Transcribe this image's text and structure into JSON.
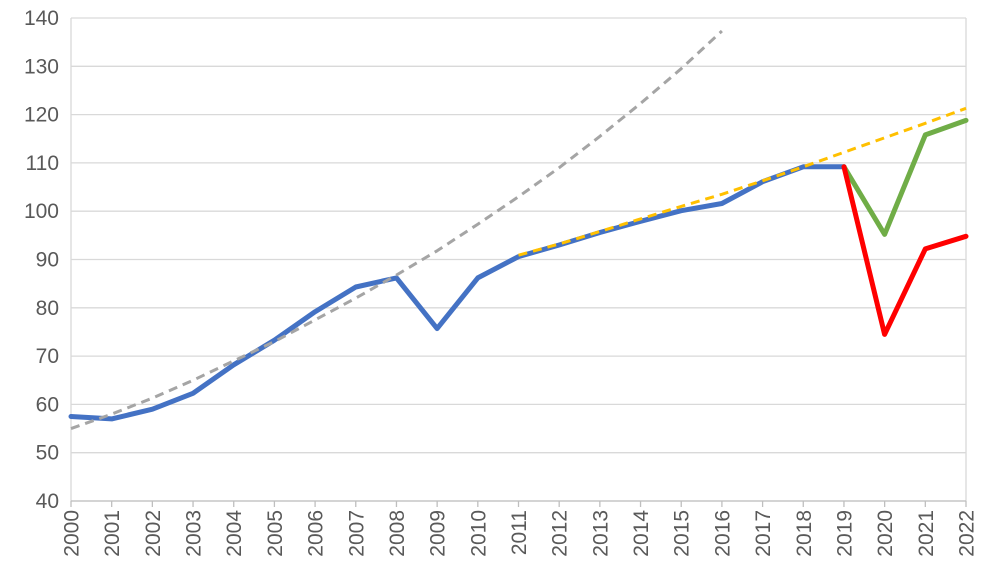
{
  "chart_data": {
    "type": "line",
    "title": "",
    "xlabel": "",
    "ylabel": "",
    "ylim": [
      40,
      140
    ],
    "y_ticks": [
      40,
      50,
      60,
      70,
      80,
      90,
      100,
      110,
      120,
      130,
      140
    ],
    "x_ticks": [
      "2000",
      "2001",
      "2002",
      "2003",
      "2004",
      "2005",
      "2006",
      "2007",
      "2008",
      "2009",
      "2010",
      "2011",
      "2012",
      "2013",
      "2014",
      "2015",
      "2016",
      "2017",
      "2018",
      "2019",
      "2020",
      "2021",
      "2022"
    ],
    "grid": true,
    "legend": "none",
    "series": [
      {
        "color": "#4472C4",
        "style": "solid",
        "points": [
          [
            2000,
            57.5
          ],
          [
            2001,
            57.0
          ],
          [
            2002,
            59.0
          ],
          [
            2003,
            62.3
          ],
          [
            2004,
            68.2
          ],
          [
            2005,
            73.3
          ],
          [
            2006,
            79.2
          ],
          [
            2007,
            84.3
          ],
          [
            2008,
            86.2
          ],
          [
            2009,
            75.7
          ],
          [
            2010,
            86.2
          ],
          [
            2011,
            90.6
          ],
          [
            2012,
            93.0
          ],
          [
            2013,
            95.6
          ],
          [
            2014,
            97.9
          ],
          [
            2015,
            100.1
          ],
          [
            2016,
            101.6
          ],
          [
            2017,
            106.1
          ],
          [
            2018,
            109.2
          ],
          [
            2019,
            109.2
          ]
        ]
      },
      {
        "color": "#70AD47",
        "style": "solid",
        "points": [
          [
            2019,
            109.2
          ],
          [
            2020,
            95.2
          ],
          [
            2021,
            115.8
          ],
          [
            2022,
            118.8
          ]
        ]
      },
      {
        "color": "#FF0000",
        "style": "solid",
        "points": [
          [
            2019,
            109.2
          ],
          [
            2020,
            74.5
          ],
          [
            2021,
            92.2
          ],
          [
            2022,
            94.8
          ]
        ]
      },
      {
        "color": "#A5A5A5",
        "style": "dashed",
        "points": [
          [
            2000,
            55.0
          ],
          [
            2001,
            58.0
          ],
          [
            2002,
            61.3
          ],
          [
            2003,
            65.0
          ],
          [
            2004,
            69.0
          ],
          [
            2005,
            73.0
          ],
          [
            2006,
            77.5
          ],
          [
            2007,
            82.0
          ],
          [
            2008,
            86.8
          ],
          [
            2009,
            91.8
          ],
          [
            2010,
            97.3
          ],
          [
            2011,
            103.0
          ],
          [
            2012,
            109.0
          ],
          [
            2013,
            115.5
          ],
          [
            2014,
            122.3
          ],
          [
            2015,
            129.5
          ],
          [
            2016,
            137.3
          ]
        ]
      },
      {
        "color": "#FFC000",
        "style": "dashed",
        "points": [
          [
            2011,
            90.9
          ],
          [
            2012,
            93.2
          ],
          [
            2013,
            95.8
          ],
          [
            2014,
            98.4
          ],
          [
            2015,
            101.0
          ],
          [
            2016,
            103.5
          ],
          [
            2017,
            106.3
          ],
          [
            2018,
            109.2
          ],
          [
            2019,
            112.2
          ],
          [
            2020,
            115.2
          ],
          [
            2021,
            118.2
          ],
          [
            2022,
            121.3
          ]
        ]
      }
    ]
  }
}
